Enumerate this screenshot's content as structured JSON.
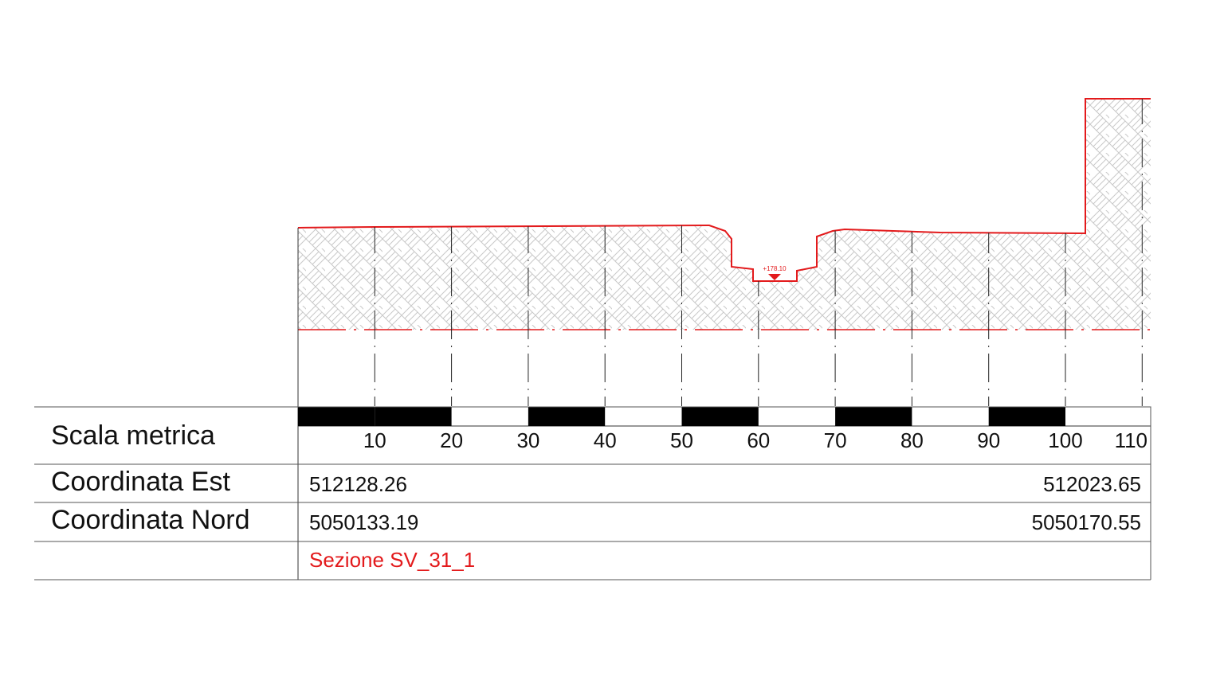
{
  "scale": {
    "label": "Scala metrica",
    "ticks": [
      10,
      20,
      30,
      40,
      50,
      60,
      70,
      80,
      90,
      100,
      110
    ]
  },
  "rows": [
    {
      "label": "Coordinata Est",
      "start": "512128.26",
      "end": "512023.65"
    },
    {
      "label": "Coordinata Nord",
      "start": "5050133.19",
      "end": "5050170.55"
    }
  ],
  "section": "Sezione SV_31_1",
  "elevation": "+178.10"
}
